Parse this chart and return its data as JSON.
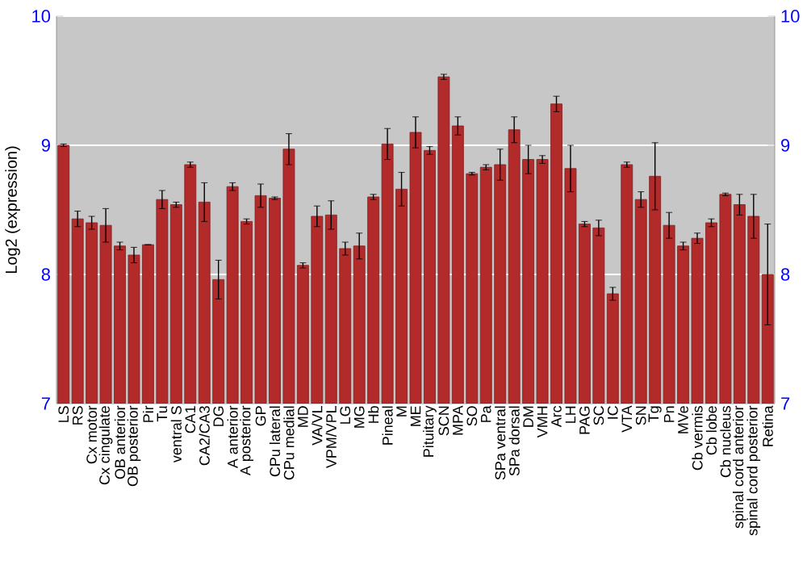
{
  "chart_data": {
    "type": "bar",
    "ylabel": "Log2 (expression)",
    "categories": [
      "LS",
      "RS",
      "Cx motor",
      "Cx cingulate",
      "OB anterior",
      "OB posterior",
      "Pir",
      "Tu",
      "ventral S",
      "CA1",
      "CA2/CA3",
      "DG",
      "A anterior",
      "A posterior",
      "GP",
      "CPu lateral",
      "CPu medial",
      "MD",
      "VA/VL",
      "VPM/VPL",
      "LG",
      "MG",
      "Hb",
      "Pineal",
      "M",
      "ME",
      "Pituitary",
      "SCN",
      "MPA",
      "SO",
      "Pa",
      "SPa ventral",
      "SPa dorsal",
      "DM",
      "VMH",
      "Arc",
      "LH",
      "PAG",
      "SC",
      "IC",
      "VTA",
      "SN",
      "Tg",
      "Pn",
      "MVe",
      "Cb vermis",
      "Cb lobe",
      "Cb nucleus",
      "spinal cord anterior",
      "spinal cord posterior",
      "Retina"
    ],
    "values": [
      9.0,
      8.43,
      8.4,
      8.38,
      8.22,
      8.15,
      8.23,
      8.58,
      8.54,
      8.85,
      8.56,
      7.96,
      8.68,
      8.41,
      8.61,
      8.59,
      8.97,
      8.07,
      8.45,
      8.46,
      8.2,
      8.22,
      8.6,
      9.01,
      8.66,
      9.1,
      8.96,
      9.53,
      9.15,
      8.78,
      8.83,
      8.85,
      9.12,
      8.89,
      8.89,
      9.32,
      8.82,
      8.39,
      8.36,
      7.85,
      8.85,
      8.58,
      8.76,
      8.38,
      8.22,
      8.28,
      8.4,
      8.62,
      8.54,
      8.45,
      8.0
    ],
    "errors": [
      0.01,
      0.06,
      0.05,
      0.13,
      0.03,
      0.06,
      0.0,
      0.07,
      0.02,
      0.02,
      0.15,
      0.15,
      0.03,
      0.02,
      0.09,
      0.01,
      0.12,
      0.02,
      0.08,
      0.11,
      0.05,
      0.1,
      0.02,
      0.12,
      0.13,
      0.12,
      0.03,
      0.02,
      0.07,
      0.01,
      0.02,
      0.12,
      0.1,
      0.11,
      0.03,
      0.06,
      0.18,
      0.02,
      0.06,
      0.05,
      0.02,
      0.06,
      0.26,
      0.1,
      0.03,
      0.04,
      0.03,
      0.01,
      0.08,
      0.17,
      0.39
    ],
    "color": "#b22a2a",
    "ylim": [
      7,
      10
    ],
    "yticks": [
      7,
      8,
      9,
      10
    ],
    "y2lim": [
      7,
      10
    ],
    "y2ticks": [
      7,
      8,
      9,
      10
    ],
    "grid": "y"
  }
}
